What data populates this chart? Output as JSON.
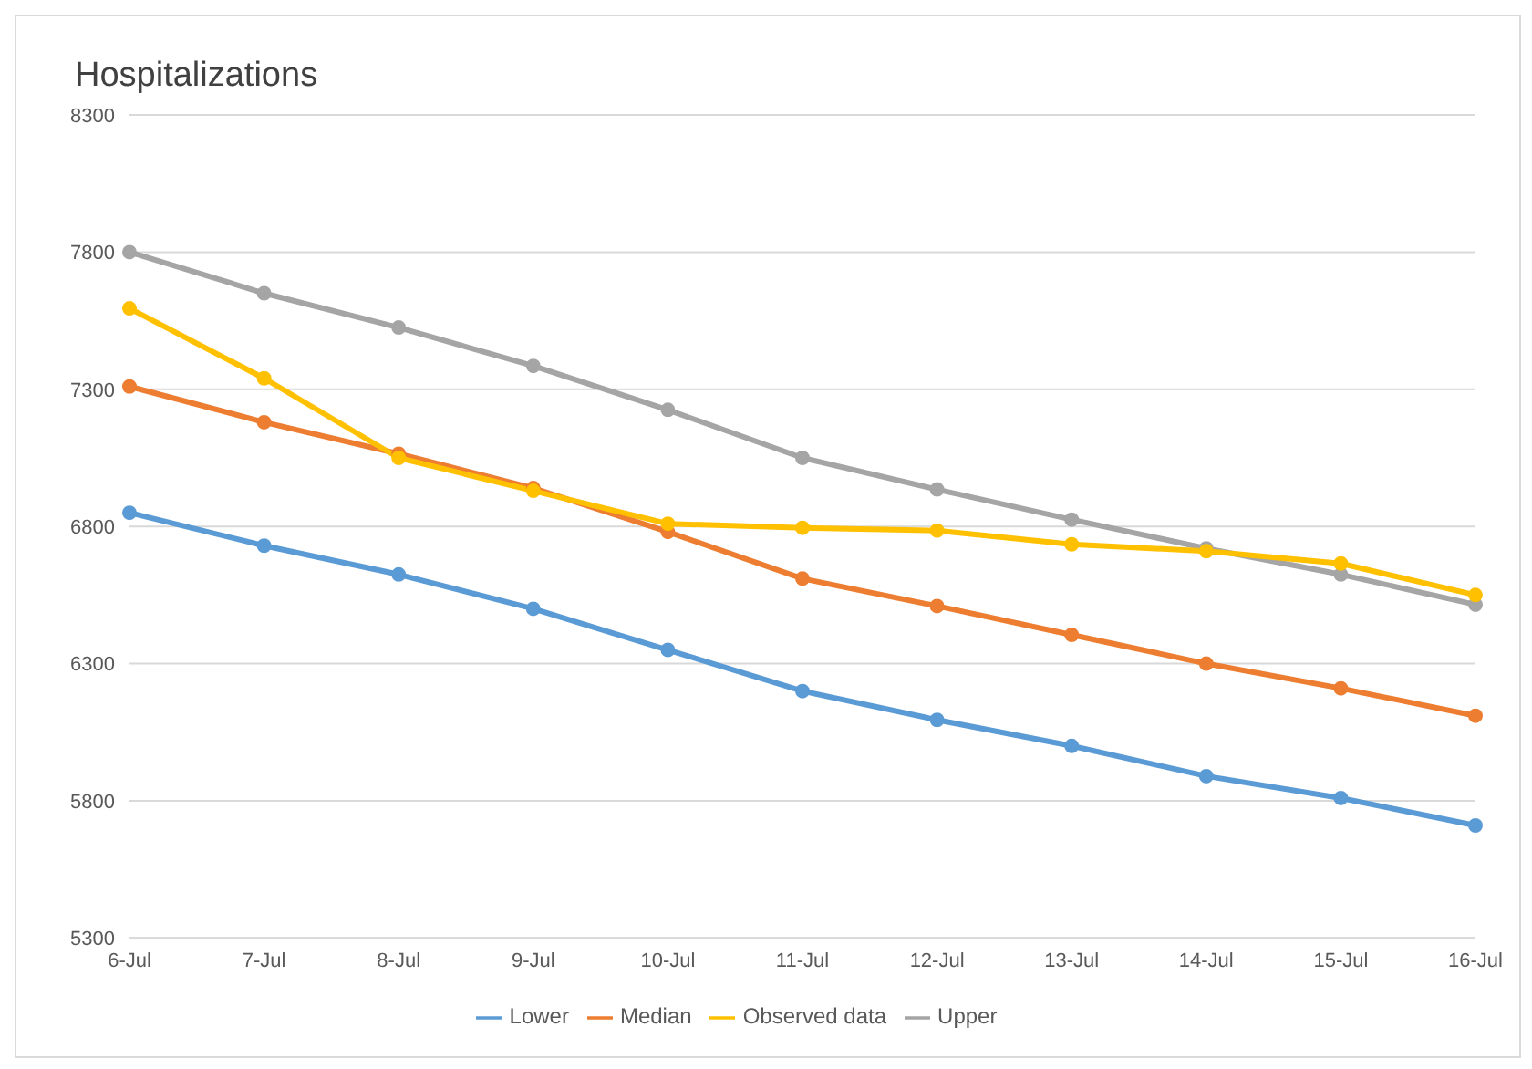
{
  "chart_data": {
    "type": "line",
    "title": "Hospitalizations",
    "categories": [
      "6-Jul",
      "7-Jul",
      "8-Jul",
      "9-Jul",
      "10-Jul",
      "11-Jul",
      "12-Jul",
      "13-Jul",
      "14-Jul",
      "15-Jul",
      "16-Jul"
    ],
    "series": [
      {
        "name": "Lower",
        "color": "#5b9bd5",
        "values": [
          6850,
          6730,
          6625,
          6500,
          6350,
          6200,
          6095,
          6000,
          5890,
          5810,
          5710
        ]
      },
      {
        "name": "Median",
        "color": "#ed7d31",
        "values": [
          7310,
          7180,
          7065,
          6940,
          6780,
          6610,
          6510,
          6405,
          6300,
          6210,
          6110
        ]
      },
      {
        "name": "Upper",
        "color": "#a5a5a5",
        "values": [
          7800,
          7650,
          7525,
          7385,
          7225,
          7050,
          6935,
          6825,
          6720,
          6625,
          6515
        ]
      },
      {
        "name": "Observed data",
        "color": "#ffc000",
        "values": [
          7595,
          7340,
          7050,
          6930,
          6810,
          6795,
          6785,
          6735,
          6710,
          6665,
          6550
        ]
      }
    ],
    "ylim": [
      5300,
      8300
    ],
    "yticks": [
      5300,
      5800,
      6300,
      6800,
      7300,
      7800,
      8300
    ],
    "grid": "y",
    "legend": "bottom",
    "marker": "circle",
    "line_style": "solid"
  }
}
